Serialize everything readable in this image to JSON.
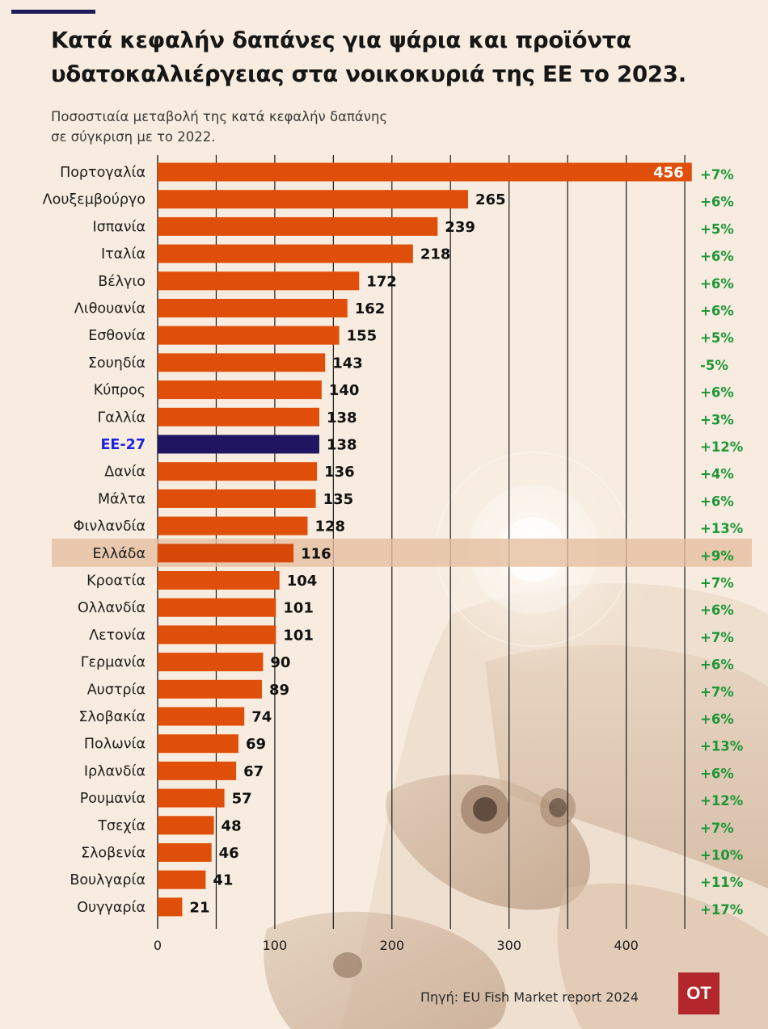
{
  "header": {
    "title": "Κατά κεφαλήν δαπάνες για ψάρια και προϊόντα υδατοκαλλιέργειας στα νοικοκυριά της ΕΕ το 2023.",
    "subtitle": "Ποσοστιαία μεταβολή της κατά κεφαλήν δαπάνης\n σε σύγκριση με το 2022."
  },
  "source": "Πηγή: EU Fish Market report 2024",
  "logo": "OT",
  "colors": {
    "bar": "#e04f0a",
    "eu_bar": "#1f1560",
    "eu_label": "#1c23e0",
    "highlight_band": "#e5bfa0",
    "change": "#1e9638",
    "background": "#f7ecdf"
  },
  "chart_data": {
    "type": "bar",
    "orientation": "horizontal",
    "categories": [
      "Πορτογαλία",
      "Λουξεμβούργο",
      "Ισπανία",
      "Ιταλία",
      "Βέλγιο",
      "Λιθουανία",
      "Εσθονία",
      "Σουηδία",
      "Κύπρος",
      "Γαλλία",
      "ΕΕ-27",
      "Δανία",
      "Μάλτα",
      "Φινλανδία",
      "Ελλάδα",
      "Κροατία",
      "Ολλανδία",
      "Λετονία",
      "Γερμανία",
      "Αυστρία",
      "Σλοβακία",
      "Πολωνία",
      "Ιρλανδία",
      "Ρουμανία",
      "Τσεχία",
      "Σλοβενία",
      "Βουλγαρία",
      "Ουγγαρία"
    ],
    "values": [
      456,
      265,
      239,
      218,
      172,
      162,
      155,
      143,
      140,
      138,
      138,
      136,
      135,
      128,
      116,
      104,
      101,
      101,
      90,
      89,
      74,
      69,
      67,
      57,
      48,
      46,
      41,
      21
    ],
    "changes": [
      "+7%",
      "+6%",
      "+5%",
      "+6%",
      "+6%",
      "+6%",
      "+5%",
      "-5%",
      "+6%",
      "+3%",
      "+12%",
      "+4%",
      "+6%",
      "+13%",
      "+9%",
      "+7%",
      "+6%",
      "+7%",
      "+6%",
      "+7%",
      "+6%",
      "+13%",
      "+6%",
      "+12%",
      "+7%",
      "+10%",
      "+11%",
      "+17%"
    ],
    "highlighted_category": "Ελλάδα",
    "aggregate_category": "ΕΕ-27",
    "x_ticks": [
      "0",
      "100",
      "200",
      "300",
      "400"
    ],
    "xlim": [
      0,
      456
    ],
    "grid": true,
    "legend": "none"
  }
}
